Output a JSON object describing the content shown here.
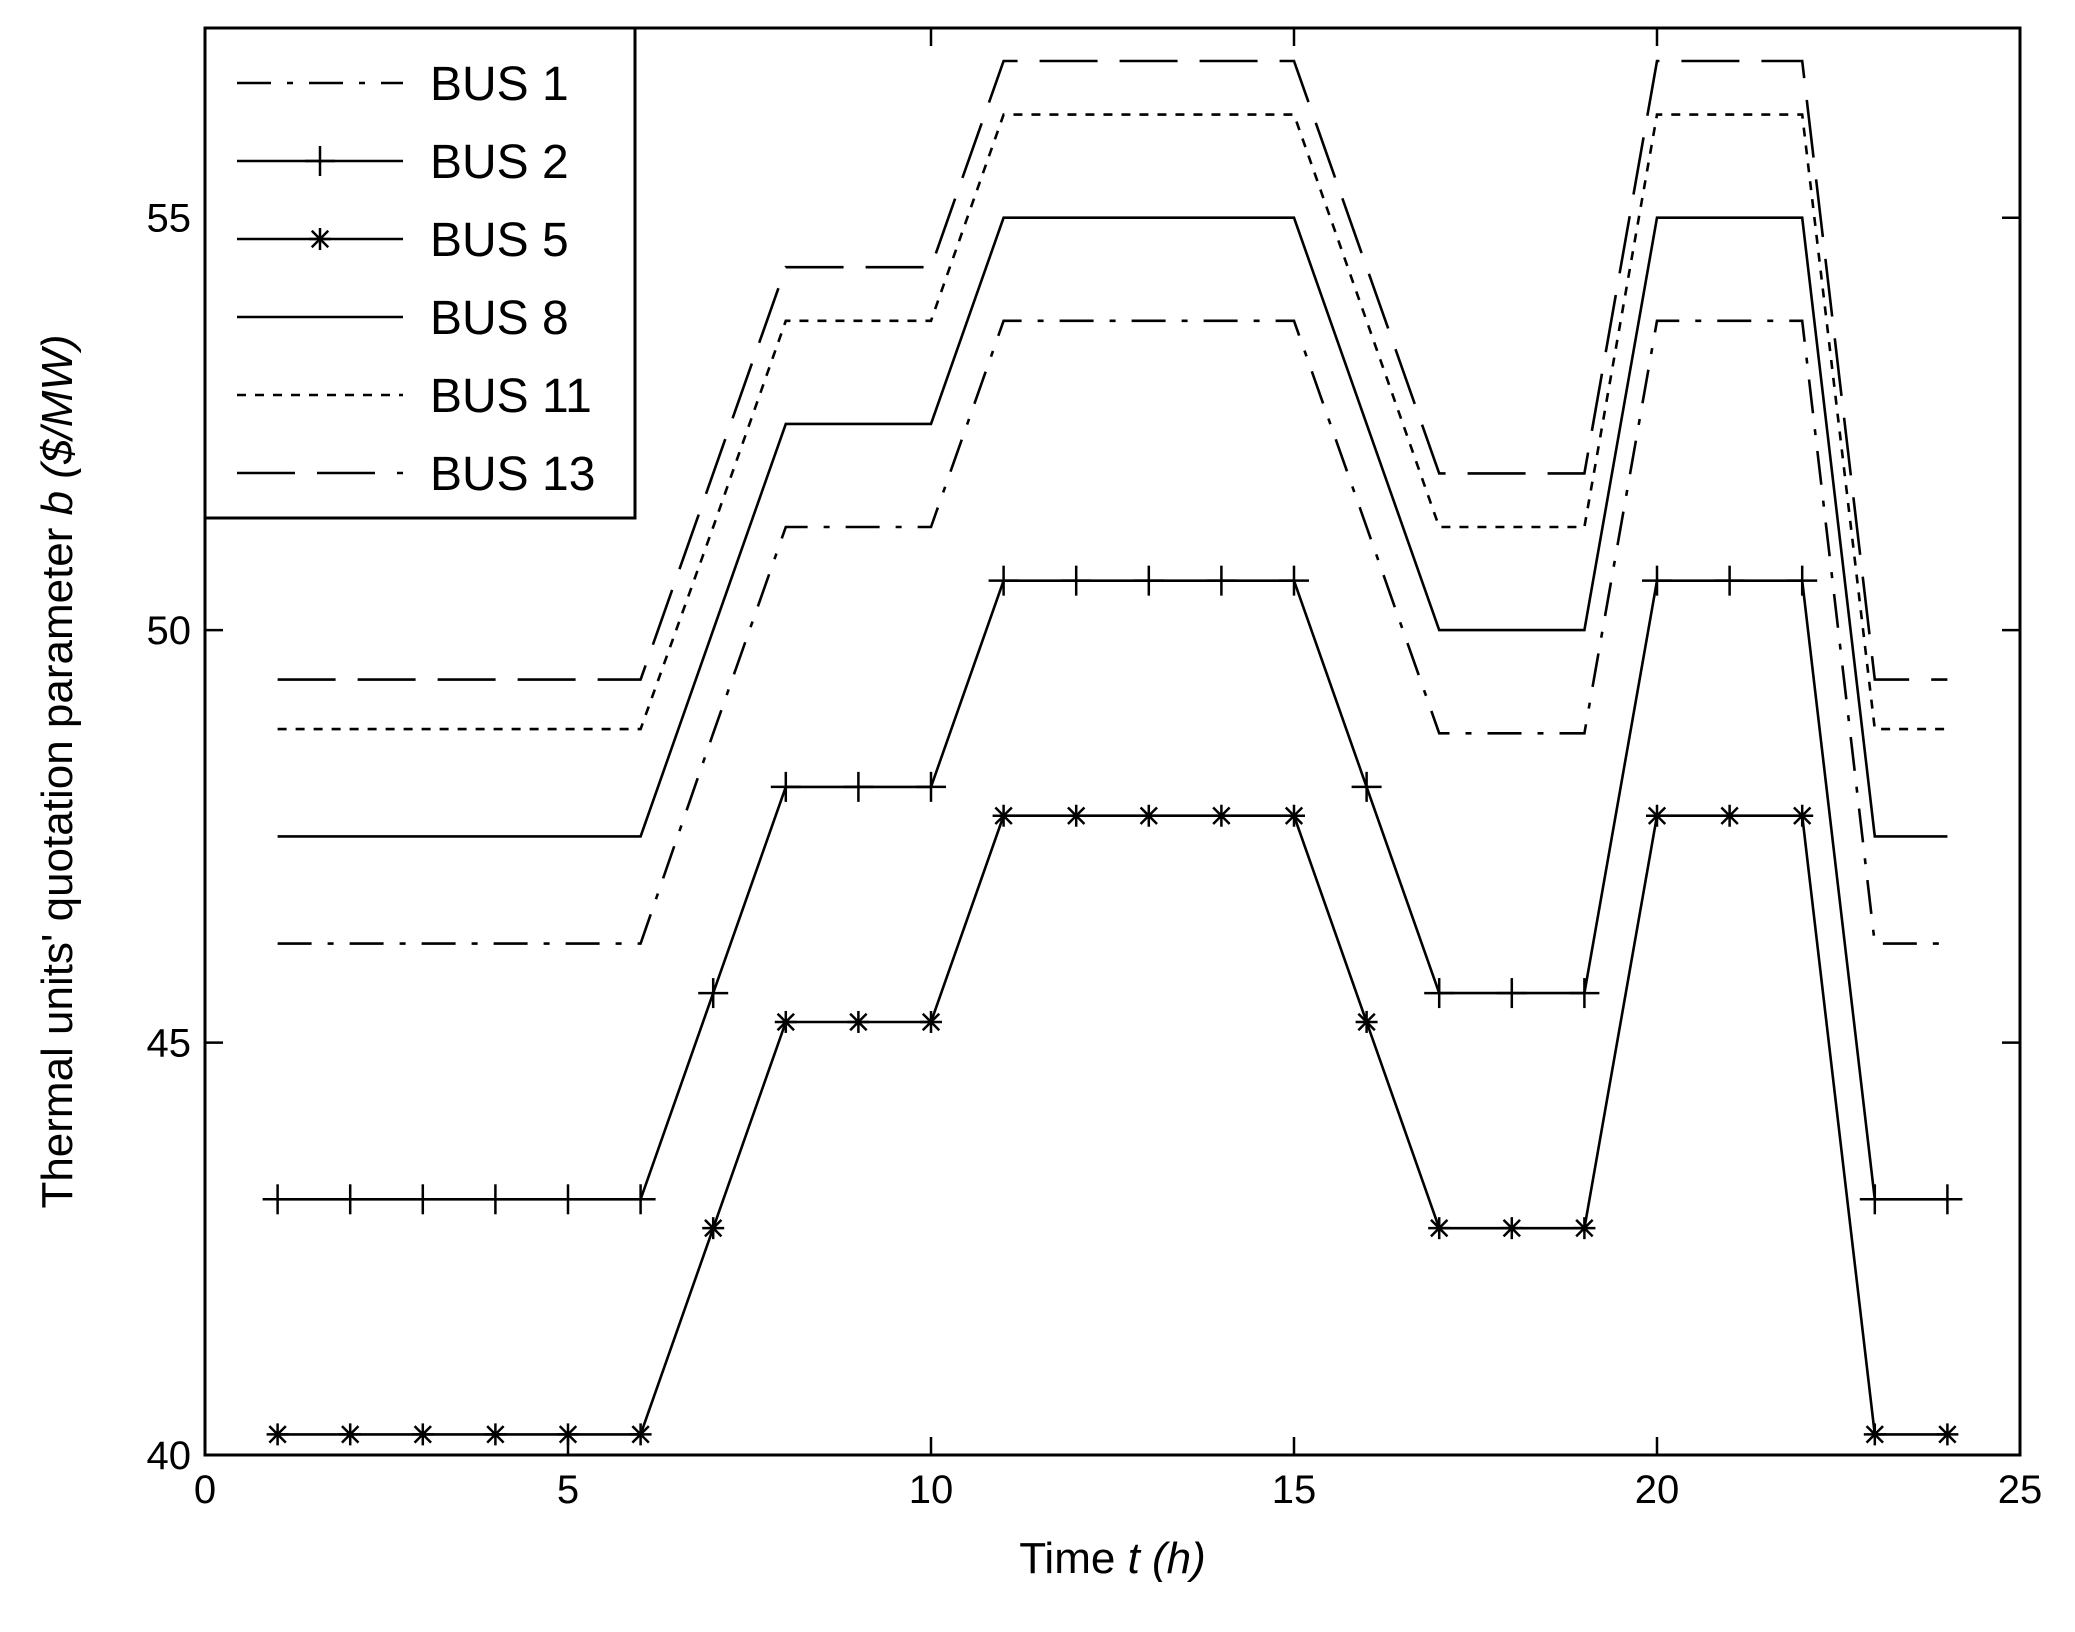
{
  "chart_data": {
    "type": "line",
    "x": [
      1,
      2,
      3,
      4,
      5,
      6,
      7,
      8,
      9,
      10,
      11,
      12,
      13,
      14,
      15,
      16,
      17,
      18,
      19,
      20,
      21,
      22,
      23,
      24
    ],
    "xlabel_prefix": "Time ",
    "xlabel_var": "t",
    "xlabel_unit": " (h)",
    "ylabel_prefix": "Thermal units' quotation parameter ",
    "ylabel_var": "b",
    "ylabel_unit": " ($/MW)",
    "xlim": [
      0,
      25
    ],
    "ylim": [
      40,
      57.3
    ],
    "xticks": [
      0,
      5,
      10,
      15,
      20,
      25
    ],
    "yticks": [
      40,
      45,
      50,
      55
    ],
    "grid": false,
    "legend_position": "top-left",
    "series": [
      {
        "name": "BUS 1",
        "style": "dashdot",
        "marker": "none",
        "values": [
          46.2,
          46.2,
          46.2,
          46.2,
          46.2,
          46.2,
          48.75,
          51.25,
          51.25,
          51.25,
          53.75,
          53.75,
          53.75,
          53.75,
          53.75,
          51.25,
          48.75,
          48.75,
          48.75,
          53.75,
          53.75,
          53.75,
          46.2,
          46.2
        ]
      },
      {
        "name": "BUS 2",
        "style": "solid",
        "marker": "plus",
        "values": [
          43.1,
          43.1,
          43.1,
          43.1,
          43.1,
          43.1,
          45.6,
          48.1,
          48.1,
          48.1,
          50.6,
          50.6,
          50.6,
          50.6,
          50.6,
          48.1,
          45.6,
          45.6,
          45.6,
          50.6,
          50.6,
          50.6,
          43.1,
          43.1
        ]
      },
      {
        "name": "BUS 5",
        "style": "solid",
        "marker": "star",
        "values": [
          40.25,
          40.25,
          40.25,
          40.25,
          40.25,
          40.25,
          42.75,
          45.25,
          45.25,
          45.25,
          47.75,
          47.75,
          47.75,
          47.75,
          47.75,
          45.25,
          42.75,
          42.75,
          42.75,
          47.75,
          47.75,
          47.75,
          40.25,
          40.25
        ]
      },
      {
        "name": "BUS 8",
        "style": "solid",
        "marker": "none",
        "values": [
          47.5,
          47.5,
          47.5,
          47.5,
          47.5,
          47.5,
          50.0,
          52.5,
          52.5,
          52.5,
          55.0,
          55.0,
          55.0,
          55.0,
          55.0,
          52.5,
          50.0,
          50.0,
          50.0,
          55.0,
          55.0,
          55.0,
          47.5,
          47.5
        ]
      },
      {
        "name": "BUS 11",
        "style": "dotted",
        "marker": "none",
        "values": [
          48.8,
          48.8,
          48.8,
          48.8,
          48.8,
          48.8,
          51.25,
          53.75,
          53.75,
          53.75,
          56.25,
          56.25,
          56.25,
          56.25,
          56.25,
          53.75,
          51.25,
          51.25,
          51.25,
          56.25,
          56.25,
          56.25,
          48.8,
          48.8
        ]
      },
      {
        "name": "BUS 13",
        "style": "longdash",
        "marker": "none",
        "values": [
          49.4,
          49.4,
          49.4,
          49.4,
          49.4,
          49.4,
          51.9,
          54.4,
          54.4,
          54.4,
          56.9,
          56.9,
          56.9,
          56.9,
          56.9,
          54.4,
          51.9,
          51.9,
          51.9,
          56.9,
          56.9,
          56.9,
          49.4,
          49.4
        ]
      }
    ]
  }
}
